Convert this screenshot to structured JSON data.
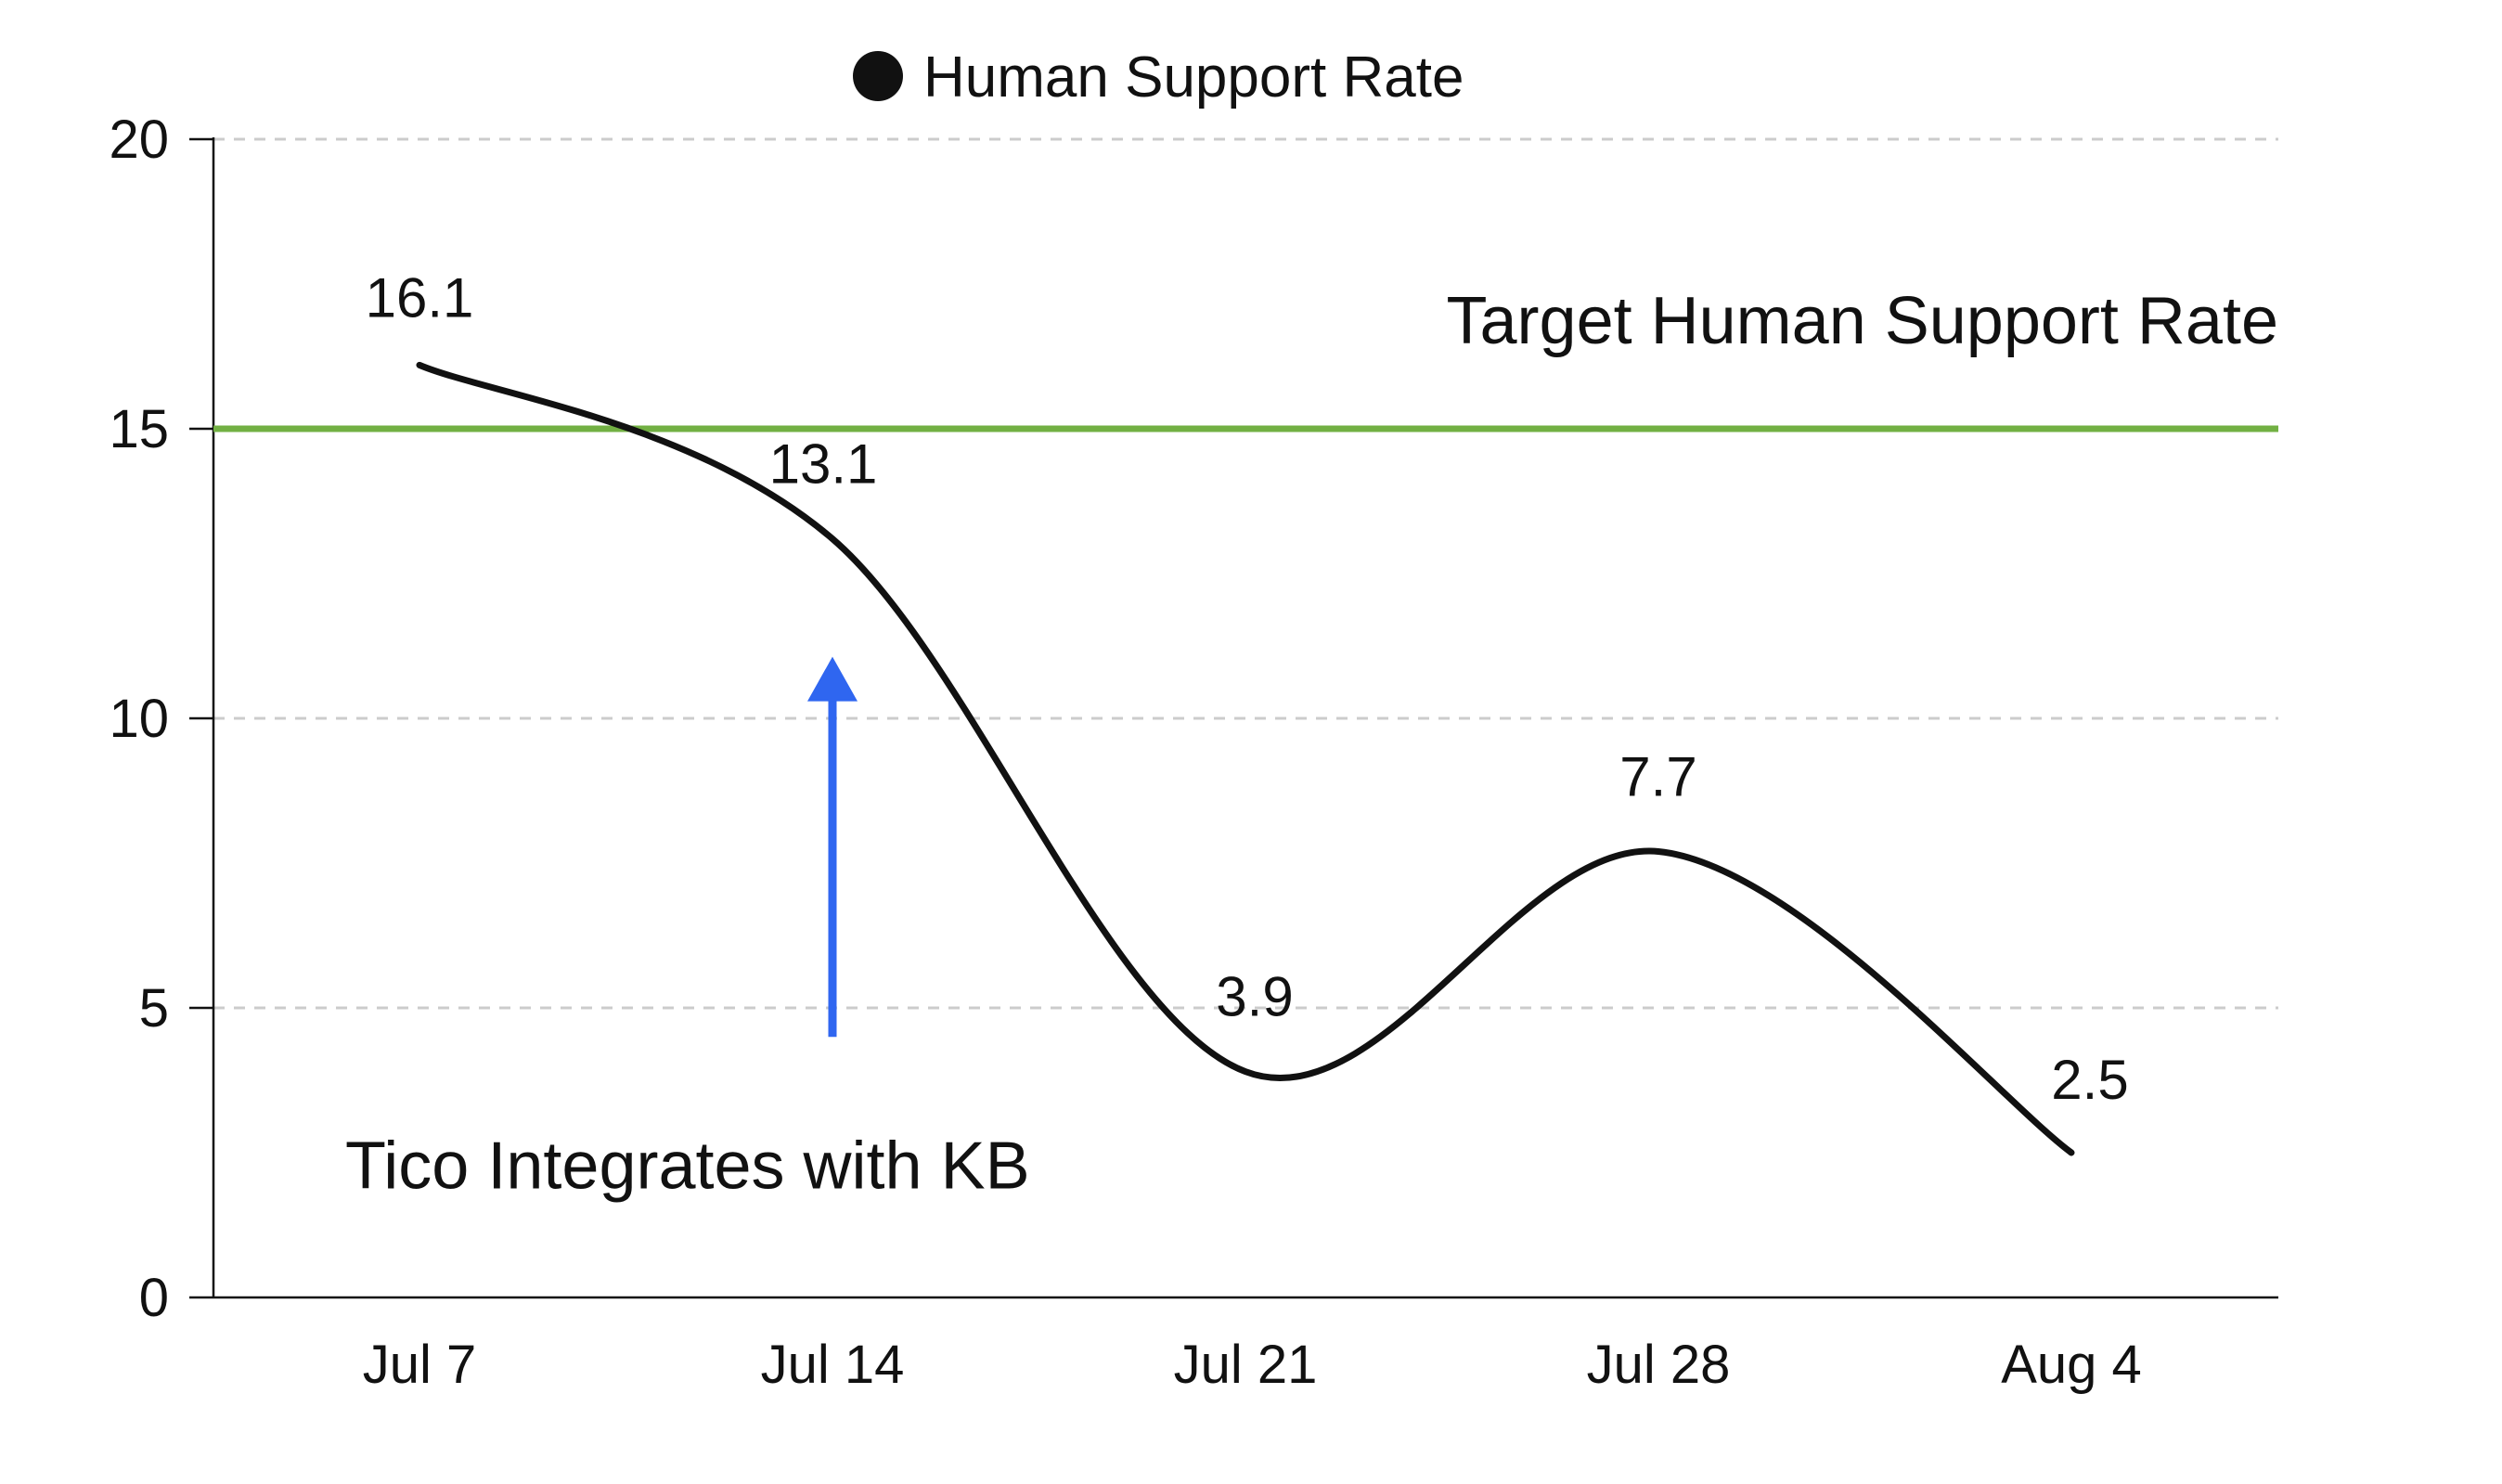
{
  "chart_data": {
    "type": "line",
    "title": "",
    "xlabel": "",
    "ylabel": "",
    "categories": [
      "Jul 7",
      "Jul 14",
      "Jul 21",
      "Jul 28",
      "Aug 4"
    ],
    "series": [
      {
        "name": "Human Support Rate",
        "values": [
          16.1,
          13.1,
          3.9,
          7.7,
          2.5
        ],
        "data_labels": [
          "16.1",
          "13.1",
          "3.9",
          "7.7",
          "2.5"
        ],
        "color": "#111111",
        "smooth": true
      }
    ],
    "ylim": [
      0,
      20
    ],
    "yticks": [
      0,
      5,
      10,
      15,
      20
    ],
    "ytick_labels": [
      "0",
      "5",
      "10",
      "15",
      "20"
    ],
    "grid": "horizontal dashed",
    "legend": {
      "placement": "top-center",
      "label": "Human Support Rate"
    },
    "reference_line": {
      "value": 15,
      "label": "Target Human Support Rate",
      "color": "#72b043"
    },
    "annotation": {
      "text": "Tico Integrates with KB",
      "category": "Jul 14",
      "arrow_color": "#2f66f0",
      "arrow_from": 4.5,
      "arrow_to": 11
    }
  }
}
